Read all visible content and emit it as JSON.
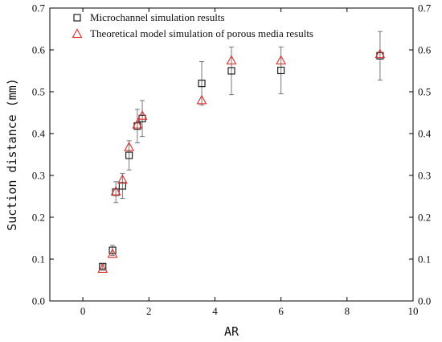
{
  "chart_data": {
    "type": "scatter",
    "xlabel": "AR",
    "ylabel": "Suction distance (mm)",
    "xlim": [
      -1,
      10
    ],
    "ylim": [
      0,
      0.7
    ],
    "x_ticks": [
      0,
      2,
      4,
      6,
      8,
      10
    ],
    "y_ticks": [
      0.0,
      0.1,
      0.2,
      0.3,
      0.4,
      0.5,
      0.6,
      0.7
    ],
    "x_tick_labels": [
      "0",
      "2",
      "4",
      "6",
      "8",
      "10"
    ],
    "y_tick_labels": [
      "0.0",
      "0.1",
      "0.2",
      "0.3",
      "0.4",
      "0.5",
      "0.6",
      "0.7"
    ],
    "legend_position": "top-left",
    "series": [
      {
        "name": "Microchannel simulation results",
        "marker": "square",
        "color": "#222222",
        "points": [
          {
            "x": 0.6,
            "y": 0.082,
            "err": 0.005
          },
          {
            "x": 0.9,
            "y": 0.121,
            "err": 0.012
          },
          {
            "x": 1.0,
            "y": 0.26,
            "err": 0.025
          },
          {
            "x": 1.2,
            "y": 0.275,
            "err": 0.03
          },
          {
            "x": 1.4,
            "y": 0.348,
            "err": 0.035
          },
          {
            "x": 1.65,
            "y": 0.418,
            "err": 0.04
          },
          {
            "x": 1.8,
            "y": 0.436,
            "err": 0.043
          },
          {
            "x": 3.6,
            "y": 0.52,
            "err": 0.052
          },
          {
            "x": 4.5,
            "y": 0.55,
            "err": 0.057
          },
          {
            "x": 6.0,
            "y": 0.551,
            "err": 0.056
          },
          {
            "x": 9.0,
            "y": 0.586,
            "err": 0.058
          }
        ]
      },
      {
        "name": "Theoretical model simulation of porous media results",
        "marker": "triangle",
        "color": "#d93a3a",
        "points": [
          {
            "x": 0.6,
            "y": 0.077
          },
          {
            "x": 0.9,
            "y": 0.113
          },
          {
            "x": 1.0,
            "y": 0.262
          },
          {
            "x": 1.2,
            "y": 0.29
          },
          {
            "x": 1.4,
            "y": 0.368
          },
          {
            "x": 1.65,
            "y": 0.422
          },
          {
            "x": 1.8,
            "y": 0.443
          },
          {
            "x": 3.6,
            "y": 0.48
          },
          {
            "x": 4.5,
            "y": 0.575
          },
          {
            "x": 6.0,
            "y": 0.575
          },
          {
            "x": 9.0,
            "y": 0.59
          }
        ]
      }
    ]
  }
}
